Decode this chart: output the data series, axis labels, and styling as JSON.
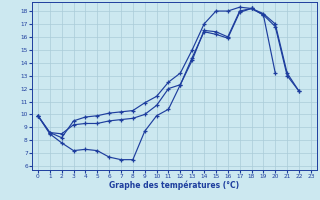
{
  "title": "Graphe des températures (°C)",
  "bg_color": "#cce8f0",
  "line_color": "#1e3e9e",
  "grid_color": "#aaccd8",
  "x_min": -0.5,
  "x_max": 23.5,
  "y_min": 5.7,
  "y_max": 18.7,
  "line_min": {
    "x": [
      0,
      1,
      2,
      3,
      4,
      5,
      6,
      7,
      8,
      9,
      10,
      11,
      12,
      13,
      14,
      15,
      16,
      17,
      18,
      19,
      20,
      21,
      22
    ],
    "y": [
      9.9,
      8.5,
      7.8,
      7.2,
      7.3,
      7.2,
      6.7,
      6.5,
      6.5,
      8.7,
      9.9,
      10.4,
      12.3,
      14.4,
      16.4,
      16.2,
      15.9,
      17.9,
      18.2,
      17.8,
      17.0,
      13.2,
      11.8
    ]
  },
  "line_trend": {
    "x": [
      0,
      1,
      2,
      3,
      4,
      5,
      6,
      7,
      8,
      9,
      10,
      11,
      12,
      13,
      14,
      15,
      16,
      17,
      18,
      19,
      20,
      21,
      22
    ],
    "y": [
      9.9,
      8.6,
      8.5,
      9.2,
      9.3,
      9.3,
      9.5,
      9.6,
      9.7,
      10.0,
      10.7,
      12.0,
      12.3,
      14.2,
      16.5,
      16.4,
      16.0,
      18.0,
      18.2,
      17.7,
      16.8,
      13.0,
      11.8
    ]
  },
  "line_max": {
    "x": [
      0,
      1,
      2,
      3,
      4,
      5,
      6,
      7,
      8,
      9,
      10,
      11,
      12,
      13,
      14,
      15,
      16,
      17,
      18,
      19,
      20
    ],
    "y": [
      9.9,
      8.6,
      8.2,
      9.5,
      9.8,
      9.9,
      10.1,
      10.2,
      10.3,
      10.9,
      11.4,
      12.5,
      13.2,
      15.0,
      17.0,
      18.0,
      18.0,
      18.3,
      18.2,
      17.7,
      13.2
    ]
  },
  "yticks": [
    6,
    7,
    8,
    9,
    10,
    11,
    12,
    13,
    14,
    15,
    16,
    17,
    18
  ],
  "xticks": [
    0,
    1,
    2,
    3,
    4,
    5,
    6,
    7,
    8,
    9,
    10,
    11,
    12,
    13,
    14,
    15,
    16,
    17,
    18,
    19,
    20,
    21,
    22,
    23
  ]
}
